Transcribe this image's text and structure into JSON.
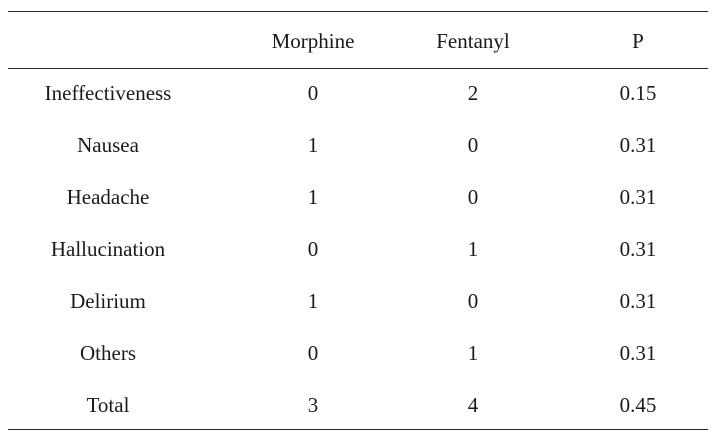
{
  "table": {
    "headers": [
      "",
      "Morphine",
      "Fentanyl",
      "P"
    ],
    "rows": [
      [
        "Ineffectiveness",
        "0",
        "2",
        "0.15"
      ],
      [
        "Nausea",
        "1",
        "0",
        "0.31"
      ],
      [
        "Headache",
        "1",
        "0",
        "0.31"
      ],
      [
        "Hallucination",
        "0",
        "1",
        "0.31"
      ],
      [
        "Delirium",
        "1",
        "0",
        "0.31"
      ],
      [
        "Others",
        "0",
        "1",
        "0.31"
      ],
      [
        "Total",
        "3",
        "4",
        "0.45"
      ]
    ]
  }
}
